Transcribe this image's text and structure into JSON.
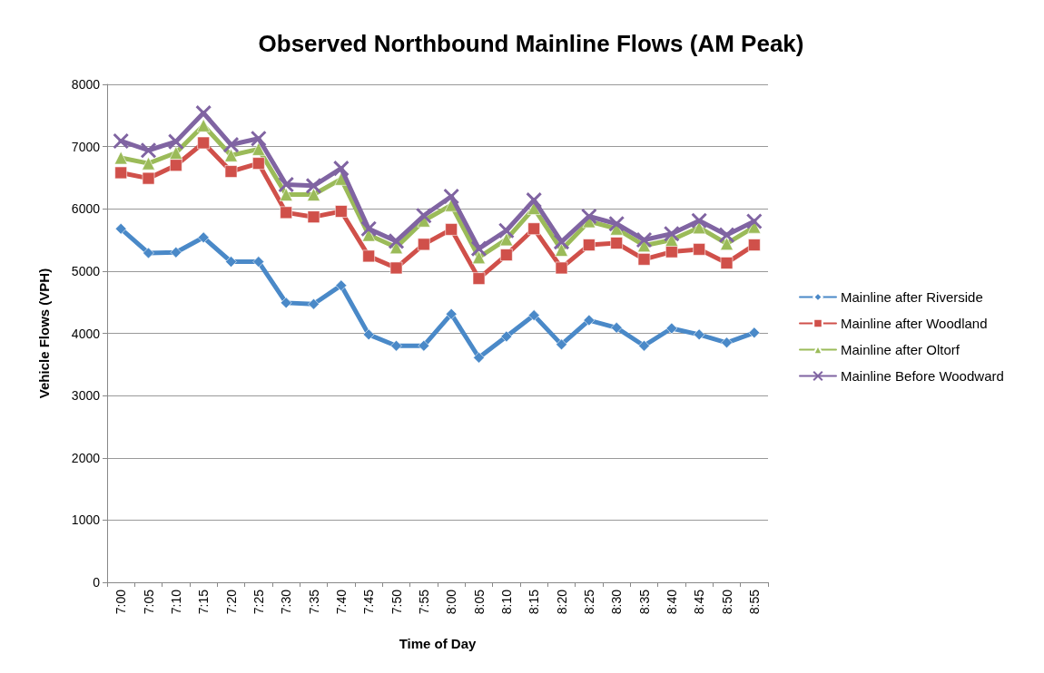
{
  "chart_data": {
    "type": "line",
    "title": "Observed Northbound Mainline Flows (AM Peak)",
    "xlabel": "Time of Day",
    "ylabel": "Vehicle Flows (VPH)",
    "categories": [
      "7:00",
      "7:05",
      "7:10",
      "7:15",
      "7:20",
      "7:25",
      "7:30",
      "7:35",
      "7:40",
      "7:45",
      "7:50",
      "7:55",
      "8:00",
      "8:05",
      "8:10",
      "8:15",
      "8:20",
      "8:25",
      "8:30",
      "8:35",
      "8:40",
      "8:45",
      "8:50",
      "8:55"
    ],
    "series": [
      {
        "name": "Mainline after Riverside",
        "color": "#4a89c8",
        "marker": "diamond",
        "values": [
          5680,
          5290,
          5300,
          5540,
          5150,
          5150,
          4490,
          4470,
          4770,
          3980,
          3800,
          3800,
          4310,
          3610,
          3950,
          4290,
          3820,
          4210,
          4090,
          3800,
          4080,
          3980,
          3850,
          4010
        ]
      },
      {
        "name": "Mainline after Woodland",
        "color": "#d0504a",
        "marker": "square",
        "values": [
          6580,
          6490,
          6700,
          7060,
          6600,
          6730,
          5940,
          5870,
          5960,
          5240,
          5050,
          5430,
          5670,
          4880,
          5260,
          5680,
          5050,
          5420,
          5450,
          5190,
          5310,
          5350,
          5130,
          5420
        ]
      },
      {
        "name": "Mainline after Oltorf",
        "color": "#9bbb59",
        "marker": "triangle",
        "values": [
          6820,
          6730,
          6900,
          7340,
          6860,
          6960,
          6230,
          6230,
          6480,
          5580,
          5380,
          5810,
          6060,
          5220,
          5510,
          6010,
          5340,
          5800,
          5680,
          5410,
          5500,
          5700,
          5440,
          5710
        ]
      },
      {
        "name": "Mainline Before Woodward",
        "color": "#8064a2",
        "marker": "cross",
        "values": [
          7090,
          6940,
          7080,
          7540,
          7030,
          7130,
          6390,
          6370,
          6650,
          5680,
          5480,
          5890,
          6200,
          5360,
          5650,
          6140,
          5470,
          5880,
          5760,
          5500,
          5600,
          5810,
          5580,
          5800
        ]
      }
    ],
    "ylim": [
      0,
      8000
    ],
    "yticks": [
      0,
      1000,
      2000,
      3000,
      4000,
      5000,
      6000,
      7000,
      8000
    ],
    "grid": "y",
    "legend": "right",
    "line_style": "solid"
  }
}
